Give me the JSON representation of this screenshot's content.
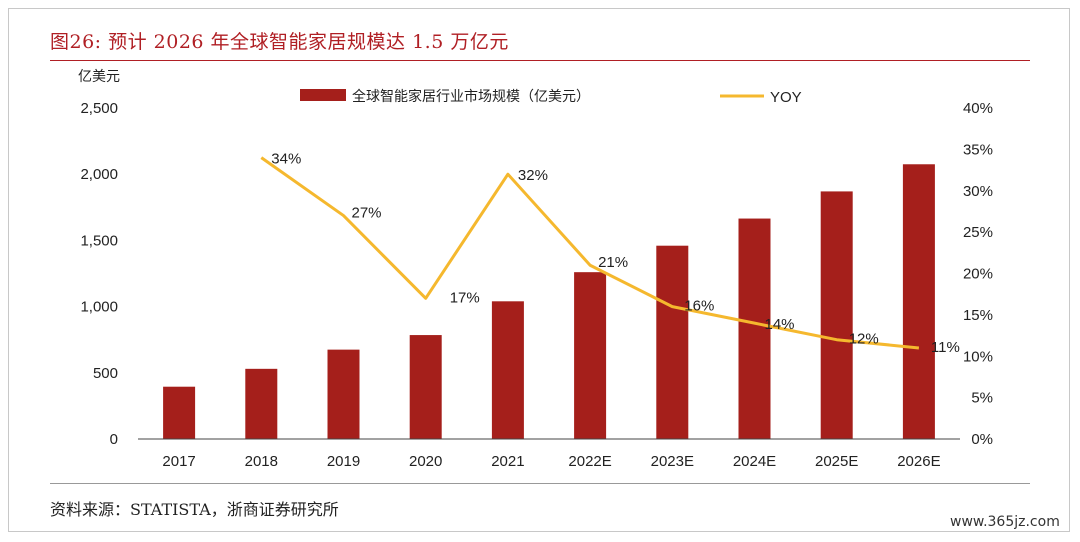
{
  "header": {
    "title": "图26:   预计 2026 年全球智能家居规模达 1.5 万亿元"
  },
  "footer": {
    "source": "资料来源：STATISTA，浙商证券研究所",
    "watermark": "www.365jz.com"
  },
  "chart_data": {
    "type": "bar",
    "title": "",
    "categories": [
      "2017",
      "2018",
      "2019",
      "2020",
      "2021",
      "2022E",
      "2023E",
      "2024E",
      "2025E",
      "2026E"
    ],
    "left_axis": {
      "unit_label": "亿美元",
      "range": [
        0,
        2500
      ],
      "ticks": [
        0,
        500,
        1000,
        1500,
        2000,
        2500
      ],
      "tick_labels": [
        "0",
        "500",
        "1,000",
        "1,500",
        "2,000",
        "2,500"
      ]
    },
    "right_axis": {
      "range": [
        0,
        40
      ],
      "ticks": [
        0,
        5,
        10,
        15,
        20,
        25,
        30,
        35,
        40
      ],
      "tick_labels": [
        "0%",
        "5%",
        "10%",
        "15%",
        "20%",
        "25%",
        "30%",
        "35%",
        "40%"
      ]
    },
    "series": [
      {
        "name": "全球智能家居行业市场规模（亿美元）",
        "type": "bar",
        "axis": "left",
        "color": "#a51f1b",
        "values": [
          395,
          530,
          675,
          785,
          1040,
          1260,
          1460,
          1665,
          1870,
          2075
        ]
      },
      {
        "name": "YOY",
        "type": "line",
        "axis": "right",
        "color": "#f5b82e",
        "values": [
          null,
          34,
          27,
          17,
          32,
          21,
          16,
          14,
          12,
          11
        ],
        "labels": [
          null,
          "34%",
          "27%",
          "17%",
          "32%",
          "21%",
          "16%",
          "14%",
          "12%",
          "11%"
        ]
      }
    ],
    "legend_position": "top",
    "grid": false
  }
}
